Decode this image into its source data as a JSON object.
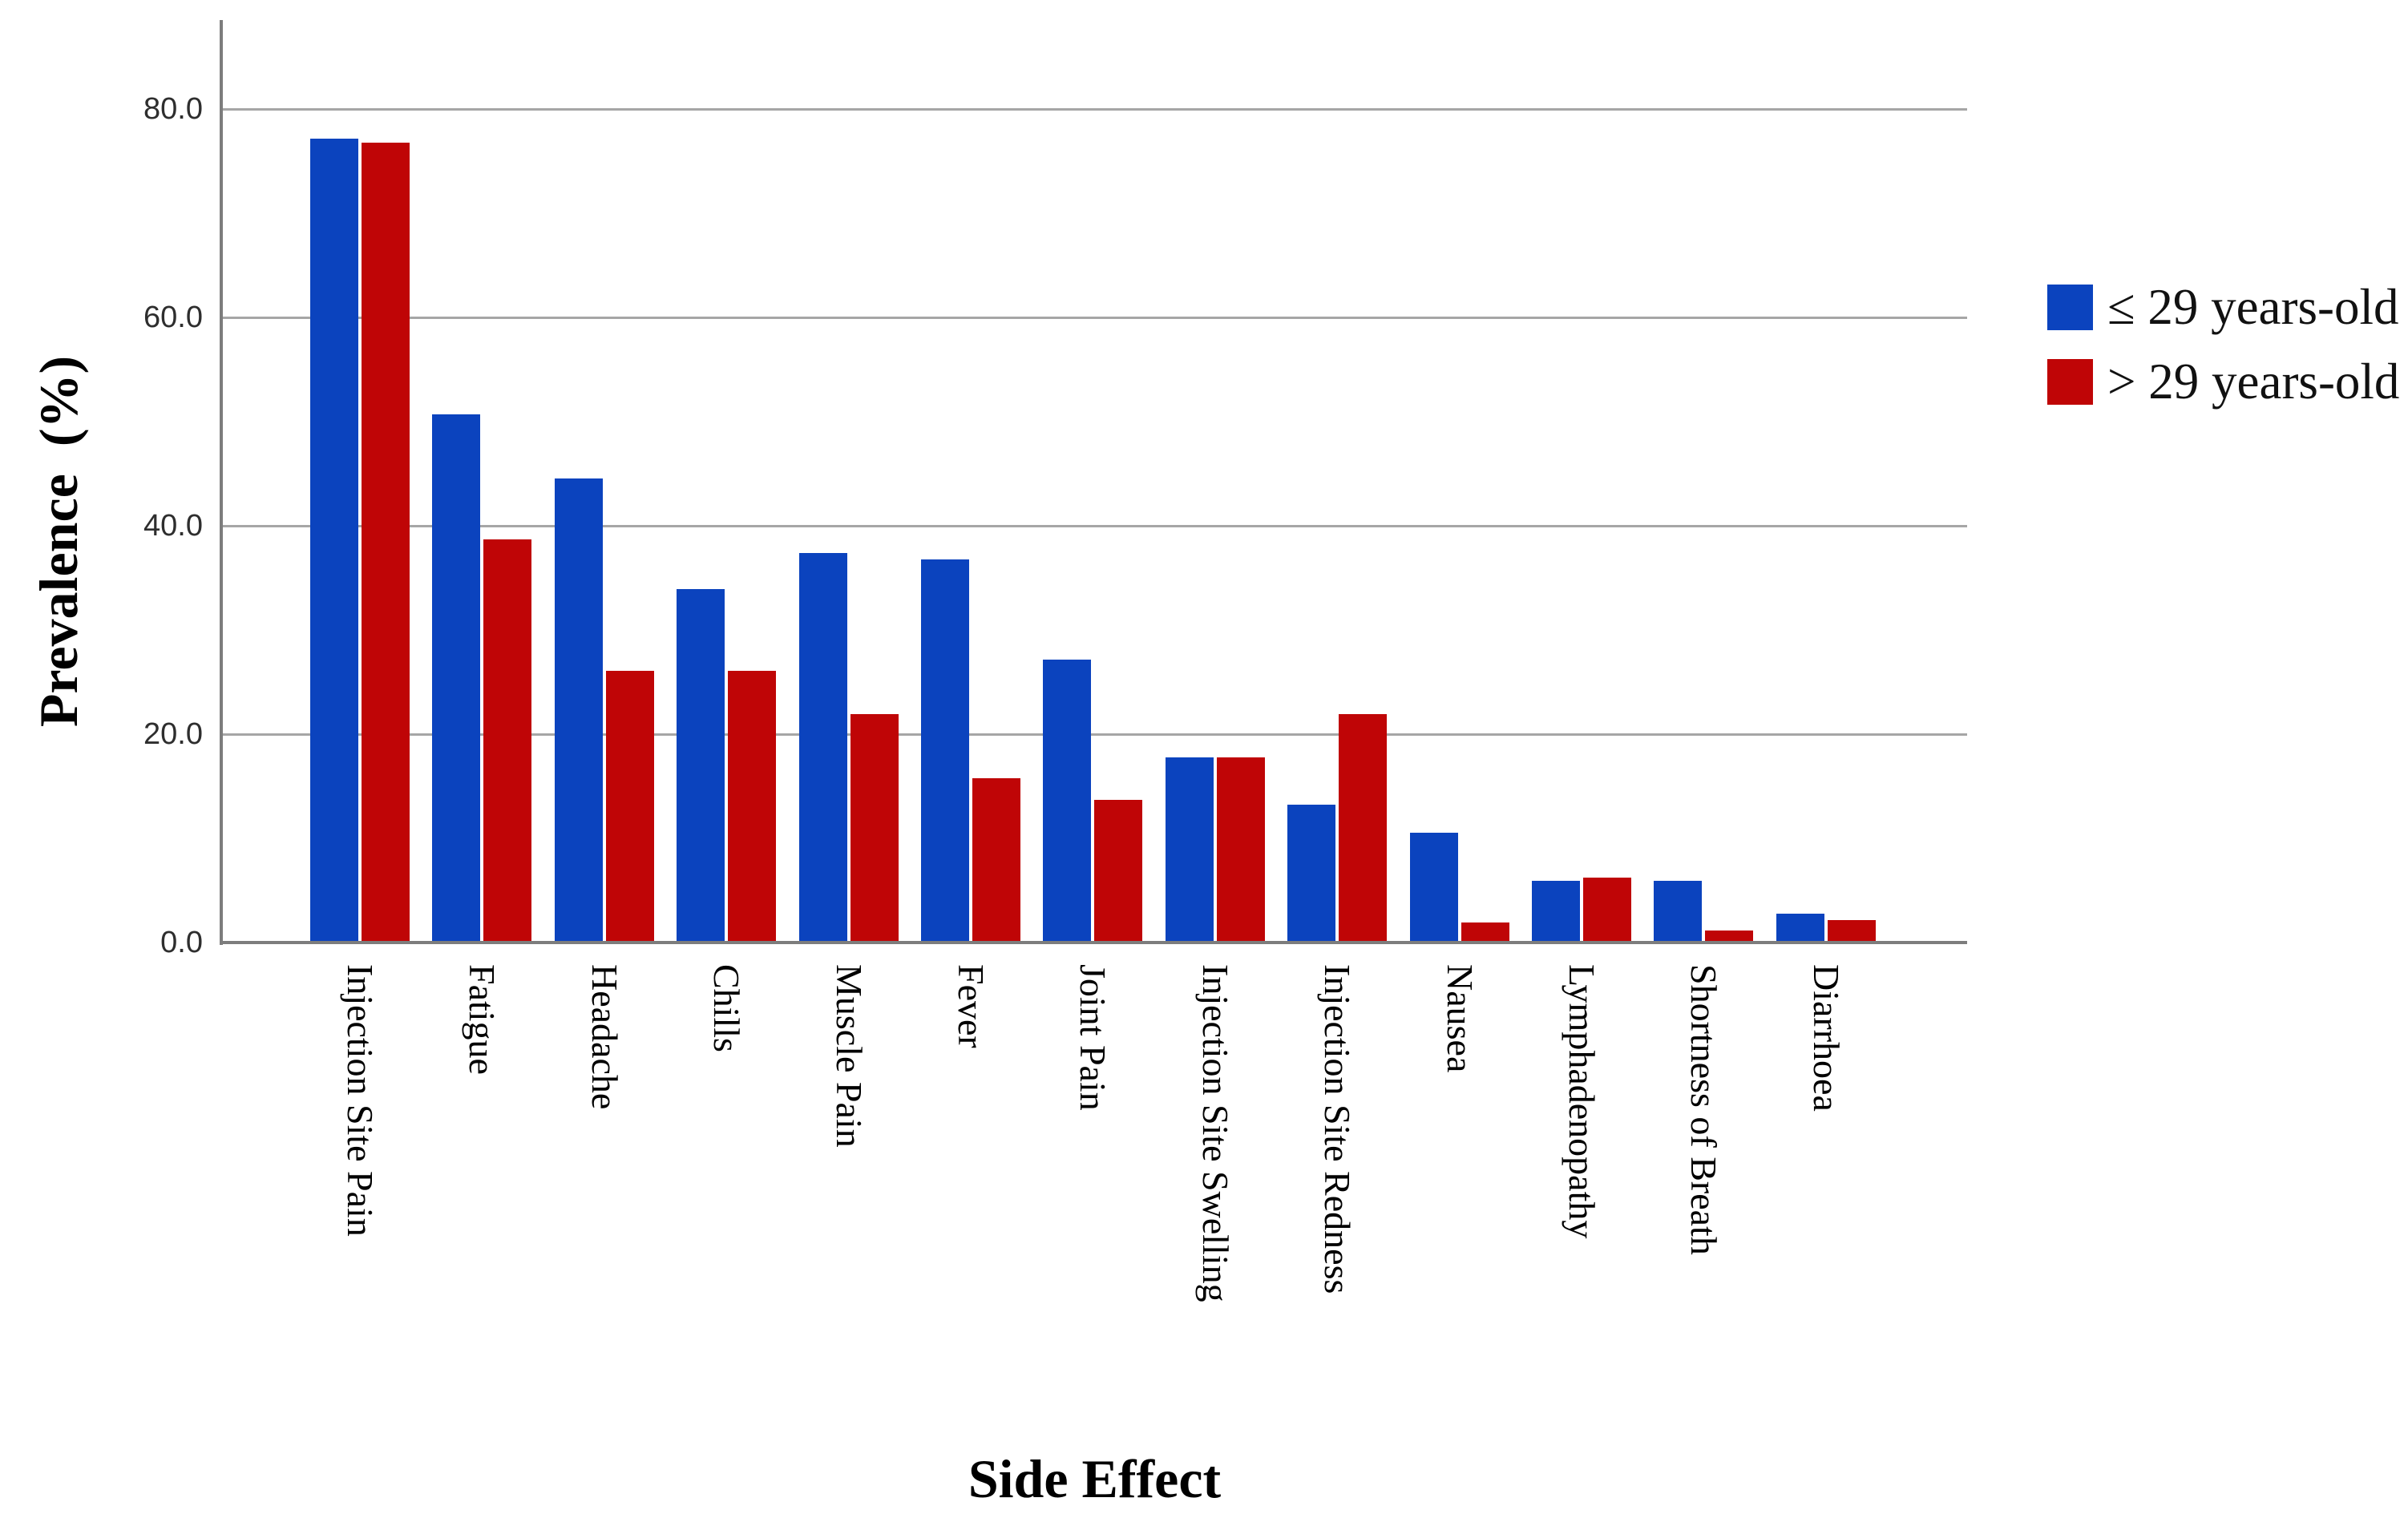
{
  "chart_data": {
    "type": "bar",
    "title": "",
    "xlabel": "Side Effect",
    "ylabel": "Prevalence  (%)",
    "categories": [
      "Injection Site Pain",
      "Fatigue",
      "Headache",
      "Chills",
      "Muscle Pain",
      "Fever",
      "Joint Pain",
      "Injection Site Swelling",
      "Injection Site Redness",
      "Nausea",
      "Lymphadenopathy",
      "Shortness of Breath",
      "Diarrhoea"
    ],
    "series": [
      {
        "name": "≤ 29 years-old",
        "color": "#0b43be",
        "values": [
          77.0,
          50.5,
          44.4,
          33.8,
          37.2,
          36.6,
          27.0,
          17.6,
          13.1,
          10.4,
          5.8,
          5.8,
          2.6
        ]
      },
      {
        "name": "> 29 years-old",
        "color": "#bf0506",
        "values": [
          76.6,
          38.5,
          25.9,
          25.9,
          21.8,
          15.6,
          13.5,
          17.6,
          21.8,
          1.8,
          6.1,
          1.0,
          2.0
        ]
      }
    ],
    "ylim": [
      0,
      89
    ],
    "yticks": [
      0,
      20,
      40,
      60,
      80
    ],
    "ytick_labels": [
      "0.0",
      "20.0",
      "40.0",
      "60.0",
      "80.0"
    ],
    "grid": "horizontal",
    "legend_position": "right"
  },
  "colors": {
    "bar_blue": "#0b43be",
    "bar_red": "#bf0506",
    "gridline": "#a6a6a6",
    "axis": "#7d7d7d",
    "tick_text": "#2e2e2e"
  }
}
